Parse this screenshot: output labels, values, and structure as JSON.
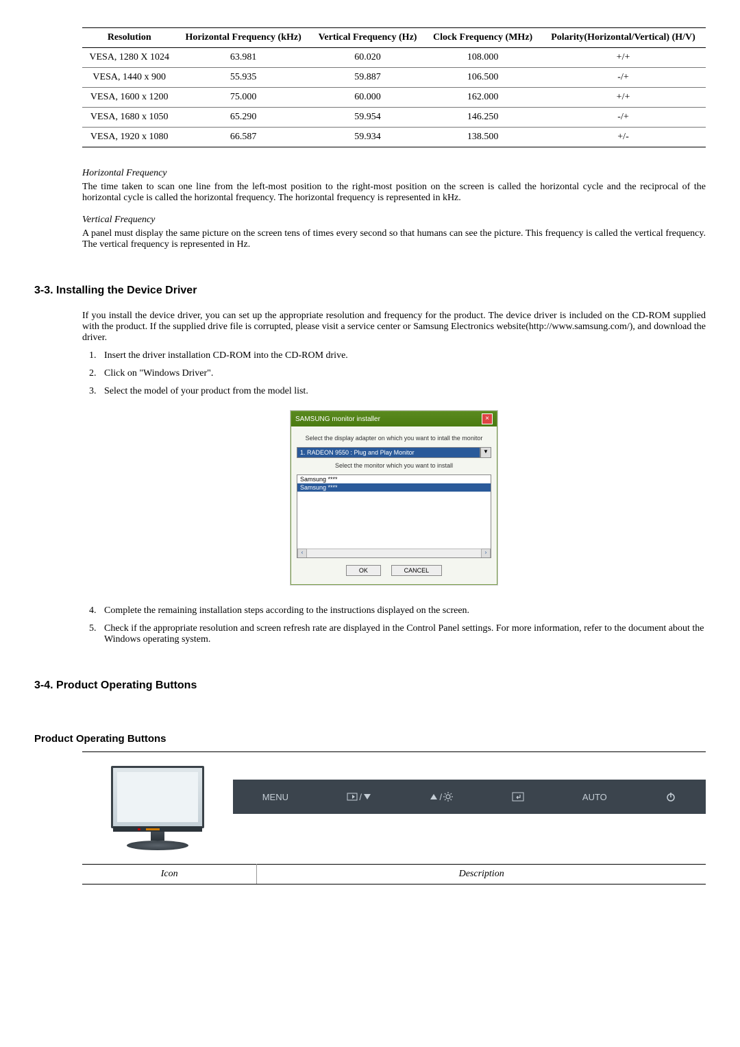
{
  "resolution_table": {
    "headers": [
      "Resolution",
      "Horizontal Frequency (kHz)",
      "Vertical Frequency (Hz)",
      "Clock Frequency (MHz)",
      "Polarity(Horizontal/Vertical) (H/V)"
    ],
    "rows": [
      [
        "VESA, 1280 X 1024",
        "63.981",
        "60.020",
        "108.000",
        "+/+"
      ],
      [
        "VESA, 1440 x 900",
        "55.935",
        "59.887",
        "106.500",
        "-/+"
      ],
      [
        "VESA, 1600 x 1200",
        "75.000",
        "60.000",
        "162.000",
        "+/+"
      ],
      [
        "VESA, 1680 x 1050",
        "65.290",
        "59.954",
        "146.250",
        "-/+"
      ],
      [
        "VESA, 1920 x 1080",
        "66.587",
        "59.934",
        "138.500",
        "+/-"
      ]
    ]
  },
  "horiz_freq": {
    "title": "Horizontal Frequency",
    "body": "The time taken to scan one line from the left-most position to the right-most position on the screen is called the horizontal cycle and the reciprocal of the horizontal cycle is called the horizontal frequency. The horizontal frequency is represented in kHz."
  },
  "vert_freq": {
    "title": "Vertical Frequency",
    "body": "A panel must display the same picture on the screen tens of times every second so that humans can see the picture. This frequency is called the vertical frequency. The vertical frequency is represented in Hz."
  },
  "section_3_3": {
    "heading": "3-3. Installing the Device Driver",
    "intro": "If you install the device driver, you can set up the appropriate resolution and frequency for the product. The device driver is included on the CD-ROM supplied with the product. If the supplied drive file is corrupted, please visit a service center or Samsung Electronics website(http://www.samsung.com/), and download the driver.",
    "steps_a": [
      "Insert the driver installation CD-ROM into the CD-ROM drive.",
      "Click on \"Windows Driver\".",
      "Select the model of your product from the model list."
    ],
    "steps_b": [
      "Complete the remaining installation steps according to the instructions displayed on the screen.",
      "Check if the appropriate resolution and screen refresh rate are displayed in the Control Panel settings. For more information, refer to the document about the Windows operating system."
    ]
  },
  "installer": {
    "title": "SAMSUNG monitor installer",
    "label1": "Select the display adapter on which you want to intall the monitor",
    "dropdown": "1. RADEON 9550 : Plug and Play Monitor",
    "label2": "Select the monitor which you want to install",
    "list_item1": "Samsung ****",
    "list_item2": "Samsung ****",
    "ok": "OK",
    "cancel": "CANCEL"
  },
  "section_3_4": {
    "heading": "3-4. Product Operating Buttons",
    "subheading": "Product Operating Buttons"
  },
  "buttons": {
    "menu": "MENU",
    "auto": "AUTO"
  },
  "desc_table": {
    "col1": "Icon",
    "col2": "Description"
  }
}
